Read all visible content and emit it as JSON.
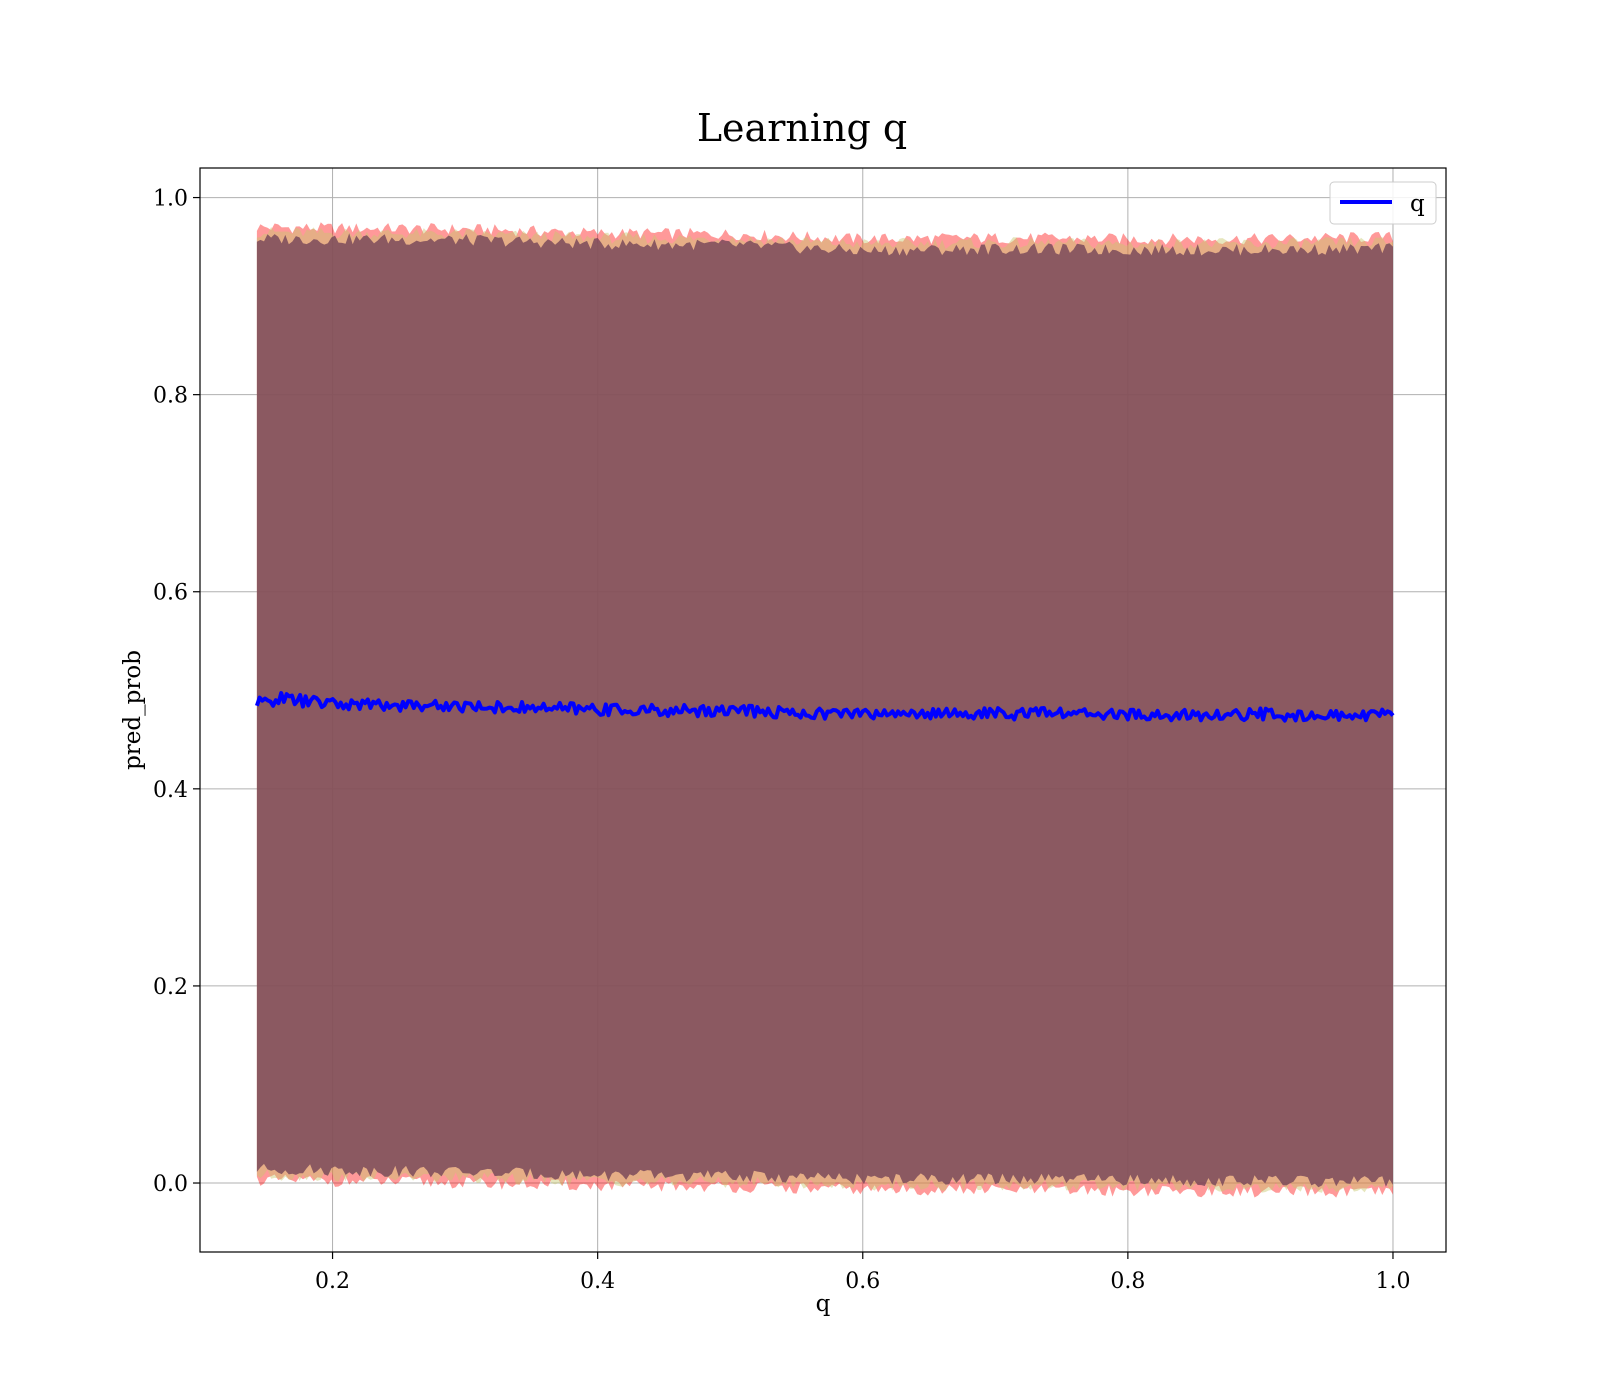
{
  "chart_data": {
    "type": "line",
    "title": "Learning q",
    "xlabel": "q",
    "ylabel": "pred_prob",
    "xlim": [
      0.1,
      1.04
    ],
    "ylim": [
      -0.07,
      1.03
    ],
    "x_ticks": [
      "0.2",
      "0.4",
      "0.6",
      "0.8",
      "1.0"
    ],
    "x_tick_values": [
      0.2,
      0.4,
      0.6,
      0.8,
      1.0
    ],
    "y_ticks": [
      "0.0",
      "0.2",
      "0.4",
      "0.6",
      "0.8",
      "1.0"
    ],
    "y_tick_values": [
      0.0,
      0.2,
      0.4,
      0.6,
      0.8,
      1.0
    ],
    "grid": true,
    "legend_position": "top-right",
    "x_range": [
      0.1429,
      1.0
    ],
    "series": [
      {
        "name": "q",
        "color": "#0000ff",
        "x": [
          0.143,
          0.16,
          0.2,
          0.25,
          0.3,
          0.35,
          0.4,
          0.45,
          0.5,
          0.55,
          0.6,
          0.65,
          0.7,
          0.75,
          0.8,
          0.85,
          0.9,
          0.95,
          1.0
        ],
        "y": [
          0.486,
          0.492,
          0.486,
          0.485,
          0.484,
          0.482,
          0.481,
          0.479,
          0.48,
          0.477,
          0.476,
          0.477,
          0.476,
          0.477,
          0.475,
          0.474,
          0.476,
          0.474,
          0.475
        ]
      }
    ],
    "bands": [
      {
        "kind": "outer",
        "color": "#ff0000",
        "opacity": 0.4,
        "x": [
          0.143,
          0.2,
          0.3,
          0.4,
          0.5,
          0.6,
          0.7,
          0.8,
          0.9,
          1.0
        ],
        "upper": [
          0.97,
          0.969,
          0.968,
          0.964,
          0.963,
          0.958,
          0.959,
          0.958,
          0.958,
          0.96
        ],
        "lower": [
          0.003,
          0.002,
          0.0,
          -0.003,
          -0.004,
          -0.007,
          -0.007,
          -0.008,
          -0.009,
          -0.01
        ]
      },
      {
        "kind": "middle",
        "color": "#c8c86e",
        "opacity": 0.45,
        "x": [
          0.143,
          0.2,
          0.3,
          0.4,
          0.5,
          0.6,
          0.7,
          0.8,
          0.9,
          1.0
        ],
        "upper": [
          0.965,
          0.964,
          0.963,
          0.959,
          0.958,
          0.953,
          0.954,
          0.953,
          0.953,
          0.955
        ],
        "lower": [
          0.008,
          0.007,
          0.005,
          0.002,
          0.001,
          -0.002,
          -0.002,
          -0.003,
          -0.004,
          -0.005
        ]
      },
      {
        "kind": "inner",
        "color": "#7a4a5a",
        "opacity": 0.85,
        "x": [
          0.143,
          0.2,
          0.3,
          0.4,
          0.5,
          0.6,
          0.7,
          0.8,
          0.9,
          1.0
        ],
        "upper": [
          0.958,
          0.958,
          0.957,
          0.953,
          0.952,
          0.946,
          0.948,
          0.947,
          0.947,
          0.948
        ],
        "lower": [
          0.014,
          0.013,
          0.011,
          0.008,
          0.007,
          0.004,
          0.004,
          0.003,
          0.002,
          0.001
        ]
      }
    ]
  }
}
